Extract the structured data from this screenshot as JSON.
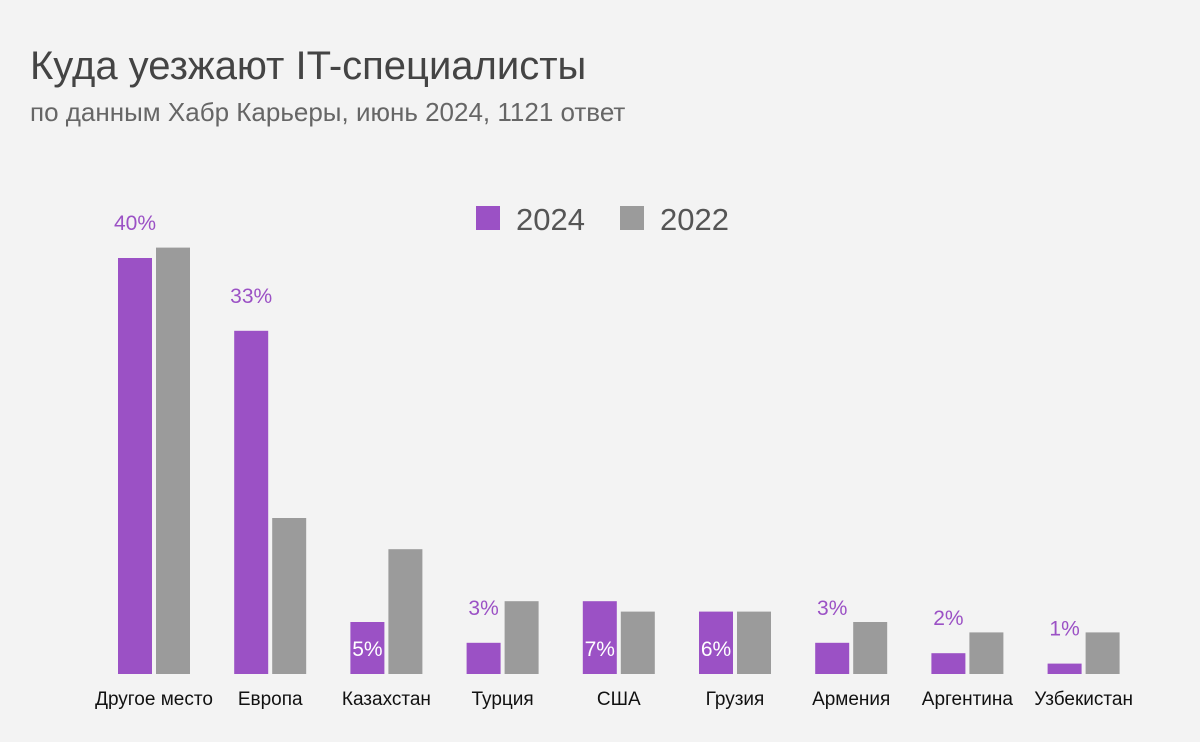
{
  "chart_data": {
    "type": "bar",
    "title": "Куда уезжают IT-специалисты",
    "subtitle": "по данным Хабр Карьеры, июнь 2024, 1121 ответ",
    "categories": [
      "Другое место",
      "Европа",
      "Казахстан",
      "Турция",
      "США",
      "Грузия",
      "Армения",
      "Аргентина",
      "Узбекистан"
    ],
    "series": [
      {
        "name": "2024",
        "color": "#9b51c5",
        "values": [
          40,
          33,
          5,
          3,
          7,
          6,
          3,
          2,
          1
        ],
        "labels": [
          "40%",
          "33%",
          "5%",
          "3%",
          "7%",
          "6%",
          "3%",
          "2%",
          "1%"
        ]
      },
      {
        "name": "2022",
        "color": "#9b9b9b",
        "values": [
          41,
          15,
          12,
          7,
          6,
          6,
          5,
          4,
          4
        ]
      }
    ],
    "ylim": [
      0,
      42
    ],
    "grid": false,
    "legend": "top-center",
    "background": "#f3f3f3"
  }
}
